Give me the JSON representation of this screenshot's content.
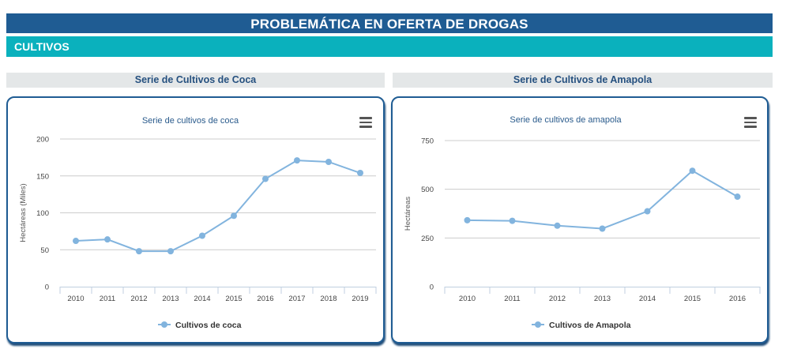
{
  "header": {
    "title": "PROBLEMÁTICA EN OFERTA DE DROGAS"
  },
  "section": {
    "title": "CULTIVOS"
  },
  "panels": [
    {
      "heading": "Serie de Cultivos de Coca"
    },
    {
      "heading": "Serie de Cultivos de Amapola"
    }
  ],
  "colors": {
    "series": "#82b4de",
    "header": "#1f5c93",
    "subheader": "#0ab1bd"
  },
  "chart_data": [
    {
      "type": "line",
      "title": "Serie de cultivos de coca",
      "xlabel": "",
      "ylabel": "Hectáreas (Miles)",
      "categories": [
        "2010",
        "2011",
        "2012",
        "2013",
        "2014",
        "2015",
        "2016",
        "2017",
        "2018",
        "2019"
      ],
      "series": [
        {
          "name": "Cultivos de coca",
          "values": [
            62,
            64,
            48,
            48,
            69,
            96,
            146,
            171,
            169,
            154
          ]
        }
      ],
      "ylim": [
        0,
        200
      ],
      "yticks": [
        0,
        50,
        100,
        150,
        200
      ],
      "grid": true,
      "legend": "bottom-center",
      "menu_icon": "hamburger-menu-icon"
    },
    {
      "type": "line",
      "title": "Serie de cultivos de amapola",
      "xlabel": "",
      "ylabel": "Hectáreas",
      "categories": [
        "2010",
        "2011",
        "2012",
        "2013",
        "2014",
        "2015",
        "2016"
      ],
      "series": [
        {
          "name": "Cultivos de Amapola",
          "values": [
            341,
            338,
            313,
            298,
            387,
            595,
            462
          ]
        }
      ],
      "ylim": [
        0,
        750
      ],
      "yticks": [
        0,
        250,
        500,
        750
      ],
      "grid": true,
      "legend": "bottom-center",
      "menu_icon": "hamburger-menu-icon"
    }
  ]
}
